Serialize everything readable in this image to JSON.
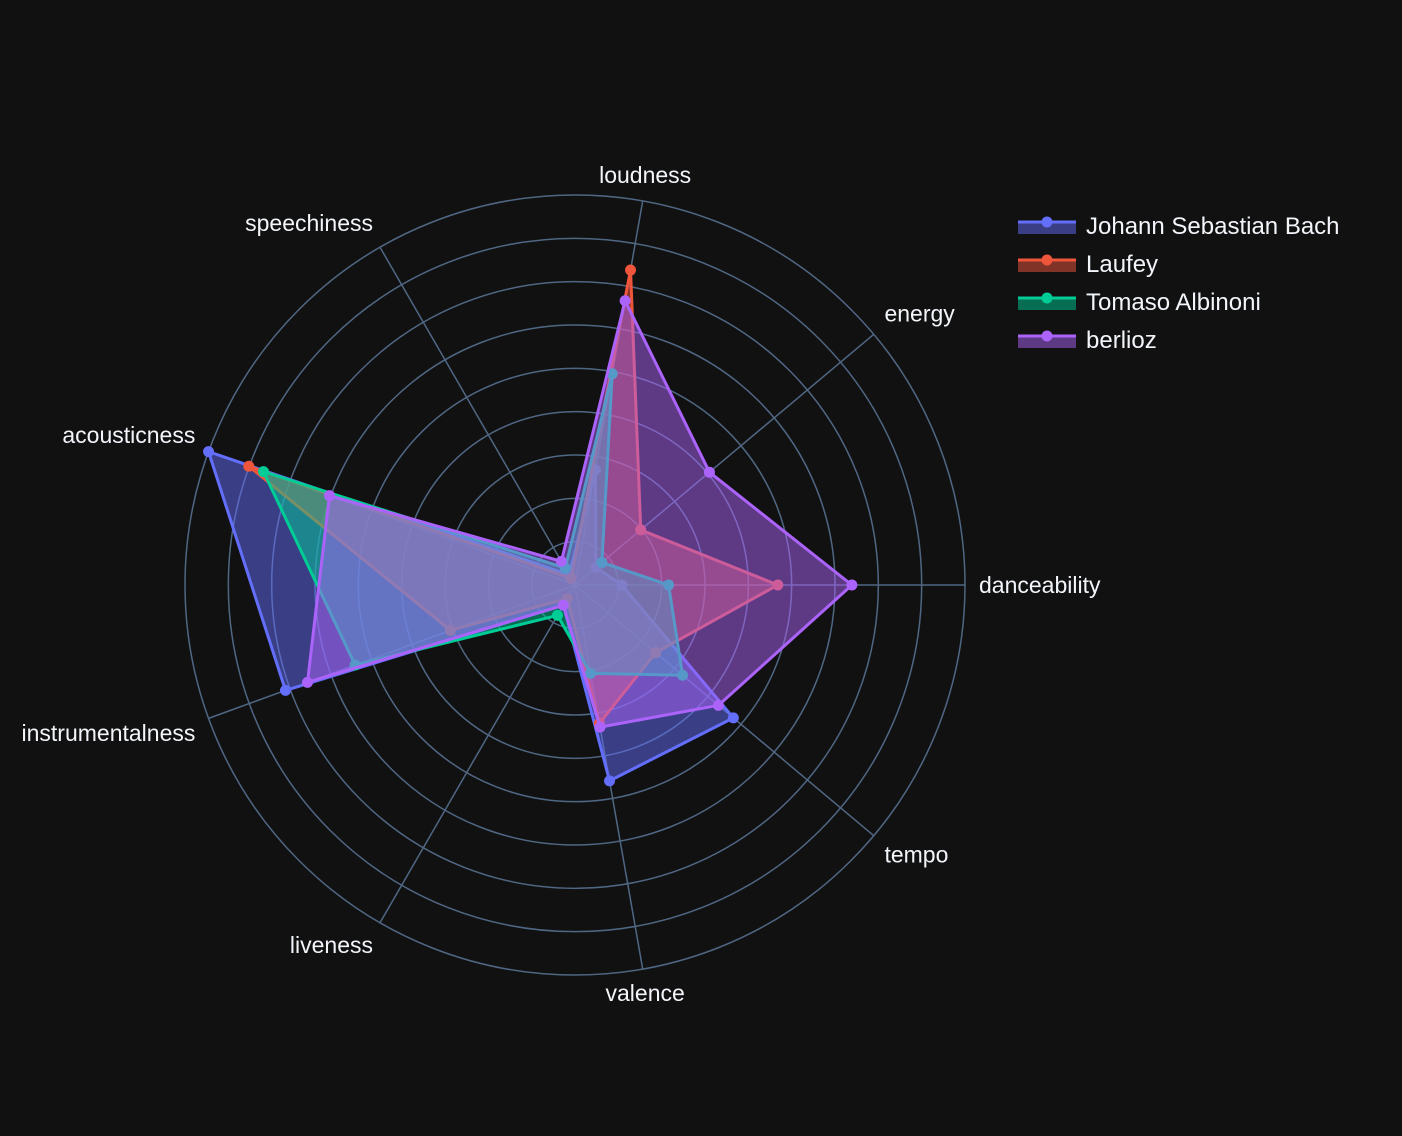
{
  "chart_data": {
    "type": "radar",
    "axes": [
      "danceability",
      "energy",
      "loudness",
      "speechiness",
      "acousticness",
      "instrumentalness",
      "liveness",
      "valence",
      "tempo"
    ],
    "rotation_deg": 0,
    "rmax": 1.0,
    "grid_rings": 9,
    "grid": true,
    "legend_position": "top-right",
    "background_color": "#111111",
    "grid_color": "#506784",
    "label_color": "#f2f5fa",
    "series": [
      {
        "name": "Johann Sebastian Bach",
        "color": "#636efa",
        "values": [
          0.12,
          0.07,
          0.3,
          0.03,
          1.0,
          0.79,
          0.06,
          0.51,
          0.53
        ]
      },
      {
        "name": "Laufey",
        "color": "#ef553b",
        "values": [
          0.52,
          0.22,
          0.82,
          0.02,
          0.89,
          0.34,
          0.04,
          0.36,
          0.27
        ]
      },
      {
        "name": "Tomaso Albinoni",
        "color": "#00cc96",
        "values": [
          0.24,
          0.09,
          0.55,
          0.05,
          0.85,
          0.6,
          0.09,
          0.23,
          0.36
        ]
      },
      {
        "name": "berlioz",
        "color": "#ab63fa",
        "values": [
          0.71,
          0.45,
          0.74,
          0.07,
          0.67,
          0.73,
          0.06,
          0.37,
          0.48
        ]
      }
    ]
  }
}
